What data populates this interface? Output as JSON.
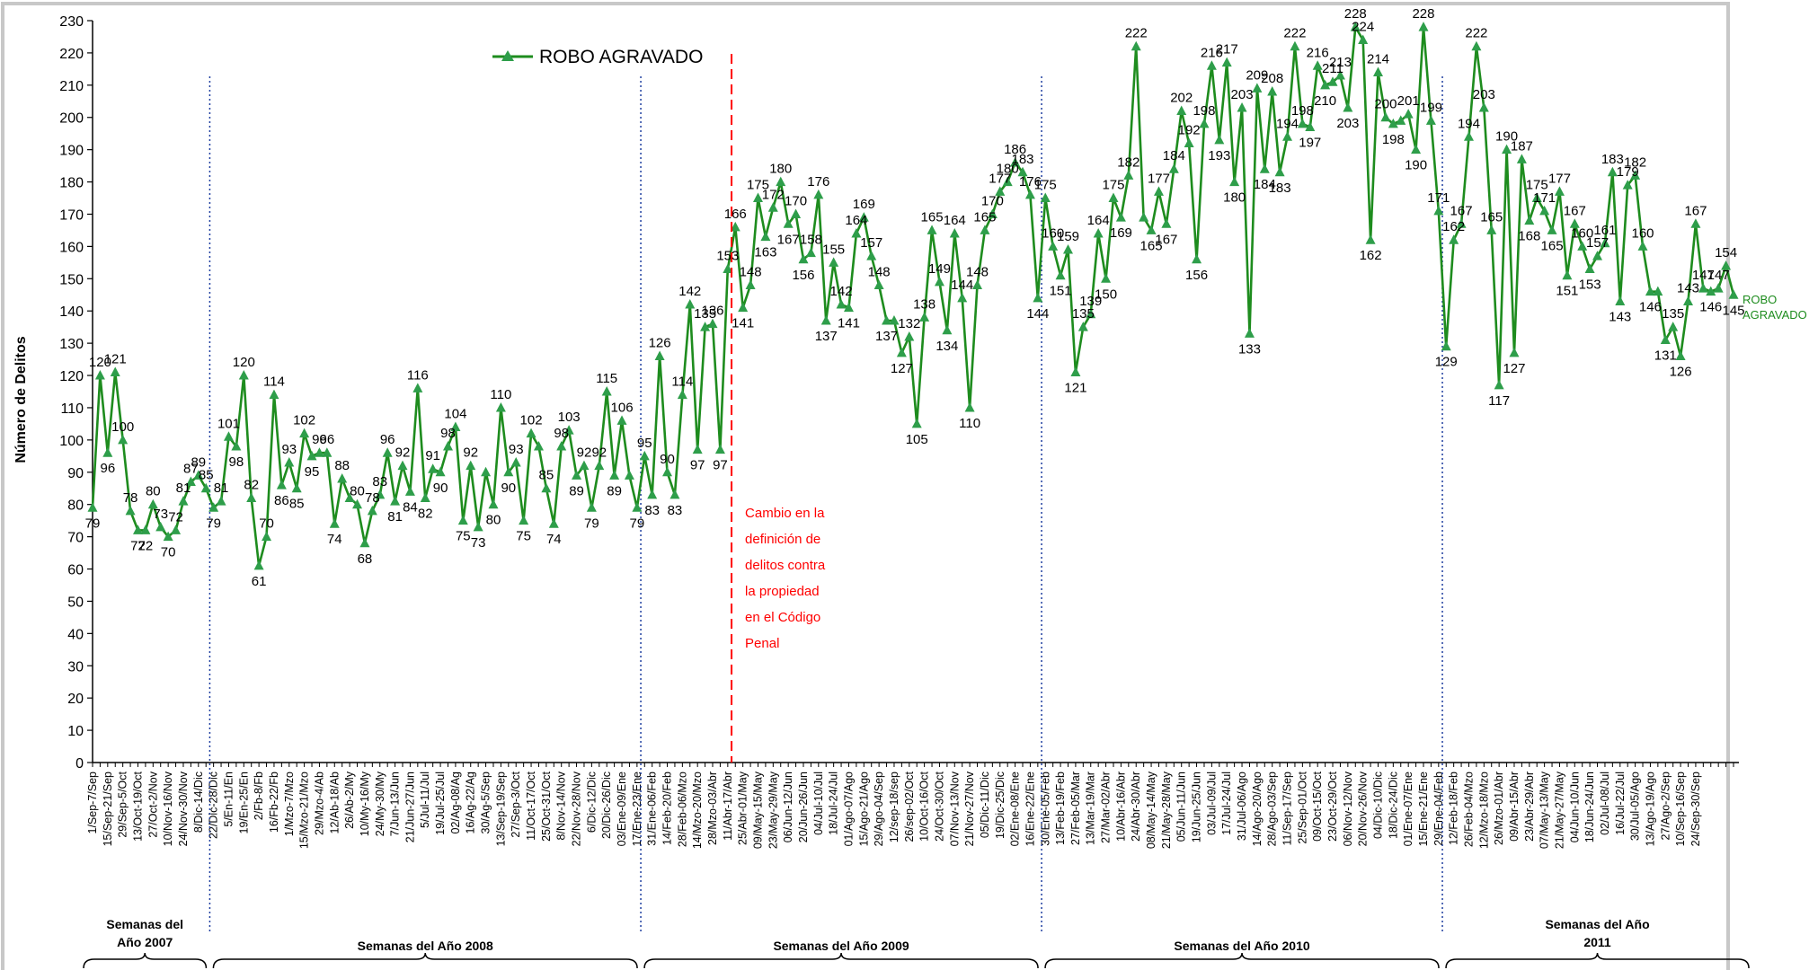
{
  "chart_data": {
    "type": "line",
    "title": "",
    "ylabel": "Número de Delitos",
    "ylim": [
      0,
      230
    ],
    "yticks": [
      0,
      10,
      20,
      30,
      40,
      50,
      60,
      70,
      80,
      90,
      100,
      110,
      120,
      130,
      140,
      150,
      160,
      170,
      180,
      190,
      200,
      210,
      220,
      230
    ],
    "legend": {
      "position": "top-left",
      "entries": [
        "ROBO AGRAVADO"
      ]
    },
    "series": [
      {
        "name": "ROBO AGRAVADO",
        "color": "#1e8c1e",
        "marker_color": "#2e9e4a",
        "values": [
          79,
          120,
          96,
          121,
          100,
          78,
          72,
          72,
          80,
          73,
          70,
          72,
          81,
          87,
          89,
          85,
          79,
          81,
          101,
          98,
          120,
          82,
          61,
          70,
          114,
          86,
          93,
          85,
          102,
          95,
          96,
          96,
          74,
          88,
          82,
          80,
          68,
          78,
          83,
          96,
          81,
          92,
          84,
          116,
          82,
          91,
          90,
          98,
          104,
          75,
          92,
          73,
          90,
          80,
          110,
          90,
          93,
          75,
          102,
          98,
          85,
          74,
          98,
          103,
          89,
          92,
          79,
          92,
          115,
          89,
          106,
          89,
          79,
          95,
          83,
          126,
          90,
          83,
          114,
          142,
          97,
          135,
          136,
          97,
          153,
          166,
          141,
          148,
          175,
          163,
          172,
          180,
          167,
          170,
          156,
          158,
          176,
          137,
          155,
          142,
          141,
          164,
          169,
          157,
          148,
          137,
          137,
          127,
          132,
          105,
          138,
          165,
          149,
          134,
          164,
          144,
          110,
          148,
          165,
          170,
          177,
          180,
          186,
          183,
          176,
          144,
          175,
          160,
          151,
          159,
          121,
          135,
          139,
          164,
          150,
          175,
          169,
          182,
          222,
          169,
          165,
          177,
          167,
          184,
          202,
          192,
          156,
          198,
          216,
          193,
          217,
          180,
          203,
          133,
          209,
          184,
          208,
          183,
          194,
          222,
          198,
          197,
          216,
          210,
          211,
          213,
          203,
          228,
          224,
          162,
          214,
          200,
          198,
          199,
          201,
          190,
          228,
          199,
          171,
          129,
          162,
          167,
          194,
          222,
          203,
          165,
          117,
          190,
          127,
          187,
          168,
          175,
          171,
          165,
          177,
          151,
          167,
          160,
          153,
          157,
          161,
          183,
          143,
          179,
          182,
          160,
          146,
          146,
          131,
          135,
          126,
          143,
          167,
          147,
          146,
          147,
          154,
          145
        ],
        "labels": [
          "79",
          "120",
          "96",
          "121",
          "100",
          "78",
          "72",
          "72",
          "80",
          "73",
          "70",
          "72",
          "81",
          "87",
          "89",
          "85",
          "79",
          "81",
          "101",
          "98",
          "120",
          "82",
          "61",
          "70",
          "114",
          "86",
          "93",
          "85",
          "102",
          "95",
          "96",
          "96",
          "74",
          "88",
          "",
          "80",
          "68",
          "78",
          "83",
          "96",
          "81",
          "92",
          "84",
          "116",
          "82",
          "91",
          "90",
          "98",
          "104",
          "75",
          "92",
          "73",
          "",
          "80",
          "110",
          "90",
          "93",
          "75",
          "102",
          "",
          "85",
          "74",
          "98",
          "103",
          "89",
          "92",
          "79",
          "92",
          "115",
          "89",
          "106",
          "",
          "79",
          "95",
          "83",
          "126",
          "90",
          "83",
          "114",
          "142",
          "97",
          "135",
          "136",
          "97",
          "153",
          "166",
          "141",
          "148",
          "175",
          "163",
          "172",
          "180",
          "167",
          "170",
          "156",
          "158",
          "176",
          "137",
          "155",
          "142",
          "141",
          "164",
          "169",
          "157",
          "148",
          "137",
          "",
          "127",
          "132",
          "105",
          "138",
          "165",
          "149",
          "134",
          "164",
          "144",
          "110",
          "148",
          "165",
          "170",
          "177",
          "180",
          "186",
          "183",
          "176",
          "144",
          "175",
          "160",
          "151",
          "159",
          "121",
          "135",
          "139",
          "164",
          "150",
          "175",
          "169",
          "182",
          "222",
          "",
          "165",
          "177",
          "167",
          "184",
          "202",
          "192",
          "156",
          "198",
          "216",
          "193",
          "217",
          "180",
          "203",
          "133",
          "209",
          "184",
          "208",
          "183",
          "194",
          "222",
          "198",
          "197",
          "216",
          "210",
          "211",
          "213",
          "203",
          "228",
          "224",
          "162",
          "214",
          "200",
          "198",
          "",
          "201",
          "190",
          "228",
          "199",
          "171",
          "129",
          "162",
          "167",
          "194",
          "222",
          "203",
          "165",
          "117",
          "190",
          "127",
          "187",
          "168",
          "175",
          "171",
          "165",
          "177",
          "151",
          "167",
          "160",
          "153",
          "157",
          "161",
          "183",
          "143",
          "179",
          "182",
          "160",
          "146",
          "",
          "131",
          "135",
          "126",
          "143",
          "167",
          "147",
          "146",
          "147",
          "154",
          "145"
        ]
      }
    ],
    "x_tick_labels": [
      "1/Sep-7/Sep",
      "15/Sep-21/Sep",
      "29/Sep-5/Oct",
      "13/Oct-19/Oct",
      "27/Oct-2/Nov",
      "10/Nov-16/Nov",
      "24/Nov-30/Nov",
      "8/Dic-14/Dic",
      "22/Dic-28/Dic",
      "5/En-11/En",
      "19/En-25/En",
      "2/Fb-8/Fb",
      "16/Fb-22/Fb",
      "1/Mzo-7/Mzo",
      "15/Mzo-21/Mzo",
      "29/Mzo-4/Ab",
      "12/Ab-18/Ab",
      "26/Ab-2/My",
      "10/My-16/My",
      "24/My-30/My",
      "7/Jun-13/Jun",
      "21/Jun-27/Jun",
      "5/Jul-11/Jul",
      "19/Jul-25/Jul",
      "02/Ag-08/Ag",
      "16/Ag-22/Ag",
      "30/Ag-5/Sep",
      "13/Sep-19/Sep",
      "27/Sep-3/Oct",
      "11/Oct-17/Oct",
      "25/Oct-31/Oct",
      "8/Nov-14/Nov",
      "22/Nov-28/Nov",
      "6/Dic-12/Dic",
      "20/Dic-26/Dic",
      "03/Ene-09/Ene",
      "17/Ene-23/Ene",
      "31/Ene-06/Feb",
      "14/Feb-20/Feb",
      "28/Feb-06/Mzo",
      "14/Mzo-20/Mzo",
      "28/Mzo-03/Abr",
      "11/Abr-17/Abr",
      "25/Abr-01/May",
      "09/May-15/May",
      "23/May-29/May",
      "06/Jun-12/Jun",
      "20/Jun-26/Jun",
      "04/Jul-10/Jul",
      "18/Jul-24/Jul",
      "01/Ago-07/Ago",
      "15/Ago-21/Ago",
      "29/Ago-04/Sep",
      "12/sep-18/sep",
      "26/sep-02/Oct",
      "10/Oct-16/Oct",
      "24/Oct-30/Oct",
      "07/Nov-13/Nov",
      "21/Nov-27/Nov",
      "05/Dic-11/Dic",
      "19/Dic-25/Dic",
      "02/Ene-08/Ene",
      "16/Ene-22/Ene",
      "30/Ene-05/Feb",
      "13/Feb-19/Feb",
      "27/Feb-05/Mar",
      "13/Mar-19/Mar",
      "27/Mar-02/Abr",
      "10/Abr-16/Abr",
      "24/Abr-30/Abr",
      "08/May-14/May",
      "21/May-28/May",
      "05/Jun-11/Jun",
      "19/Jun-25/Jun",
      "03/Jul-09/Jul",
      "17/Jul-24/Jul",
      "31/Jul-06/Ago",
      "14/Ago-20/Ago",
      "28/Ago-03/Sep",
      "11/Sep-17/Sep",
      "25/Sep-01/Oct",
      "09/Oct-15/Oct",
      "23/Oct-29/Oct",
      "06/Nov-12/Nov",
      "20/Nov-26/Nov",
      "04/Dic-10/Dic",
      "18/Dic-24/Dic",
      "01/Ene-07/Ene",
      "15/Ene-21/Ene",
      "29/Ene-04/Feb",
      "12/Feb-18/Feb",
      "26/Feb-04/Mzo",
      "12/Mzo-18/Mzo",
      "26/Mzo-01/Abr",
      "09/Abr-15/Abr",
      "23/Abr-29/Abr",
      "07/May-13/May",
      "21/May-27/May",
      "04/Jun-10/Jun",
      "18/Jun-24/Jun",
      "02/Jul-08/Jul",
      "16/Jul-22/Jul",
      "30/Jul-05/Ago",
      "13/Ago-19/Ago",
      "27/Ago-2/Sep",
      "10/Sep-16/Sep",
      "24/Sep-30/Sep"
    ],
    "year_dividers_after_index": [
      15,
      72,
      125,
      178
    ],
    "annotation_after_index": 84,
    "annotation": "Cambio en la definición de delitos contra la propiedad en el Código Penal",
    "annotation_lines": [
      "Cambio en la",
      "definición de",
      "delitos contra",
      "la propiedad",
      "en el Código",
      "Penal"
    ],
    "year_groups": [
      {
        "lines": [
          "Semanas del",
          "Año 2007"
        ],
        "start": 0,
        "end": 15
      },
      {
        "lines": [
          "Semanas del Año 2008"
        ],
        "start": 15,
        "end": 72
      },
      {
        "lines": [
          "Semanas del Año 2009"
        ],
        "start": 72,
        "end": 125
      },
      {
        "lines": [
          "Semanas del Año 2010"
        ],
        "start": 125,
        "end": 178
      },
      {
        "lines": [
          "Semanas del Año",
          "2011"
        ],
        "start": 178,
        "end": 219
      }
    ],
    "end_label": [
      "ROBO",
      "AGRAVADO"
    ],
    "grid": false
  }
}
